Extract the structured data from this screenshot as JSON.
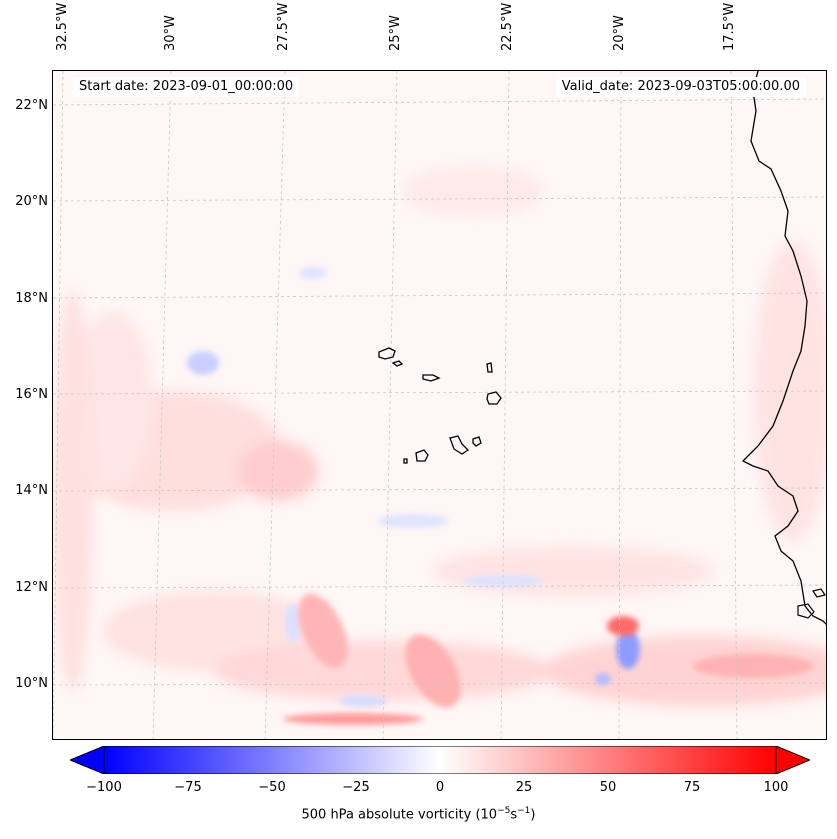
{
  "map": {
    "lon_labels": [
      "32.5°W",
      "30°W",
      "27.5°W",
      "25°W",
      "22.5°W",
      "20°W",
      "17.5°W"
    ],
    "lat_labels": [
      "22°N",
      "20°N",
      "18°N",
      "16°N",
      "14°N",
      "12°N",
      "10°N"
    ],
    "start_date": "Start date: 2023-09-01_00:00:00",
    "valid_date": "Valid_date: 2023-09-03T05:00:00.00",
    "variable": "500 hPa absolute vorticity",
    "units_prefix": "(10",
    "units_exp1": "−5",
    "units_mid": "s",
    "units_exp2": "−1",
    "units_suffix": ")"
  },
  "colorbar": {
    "ticks": [
      "−100",
      "−75",
      "−50",
      "−25",
      "0",
      "25",
      "50",
      "75",
      "100"
    ],
    "colors": {
      "min": "#0000ff",
      "mid": "#ffffff",
      "max": "#ff0000"
    }
  }
}
